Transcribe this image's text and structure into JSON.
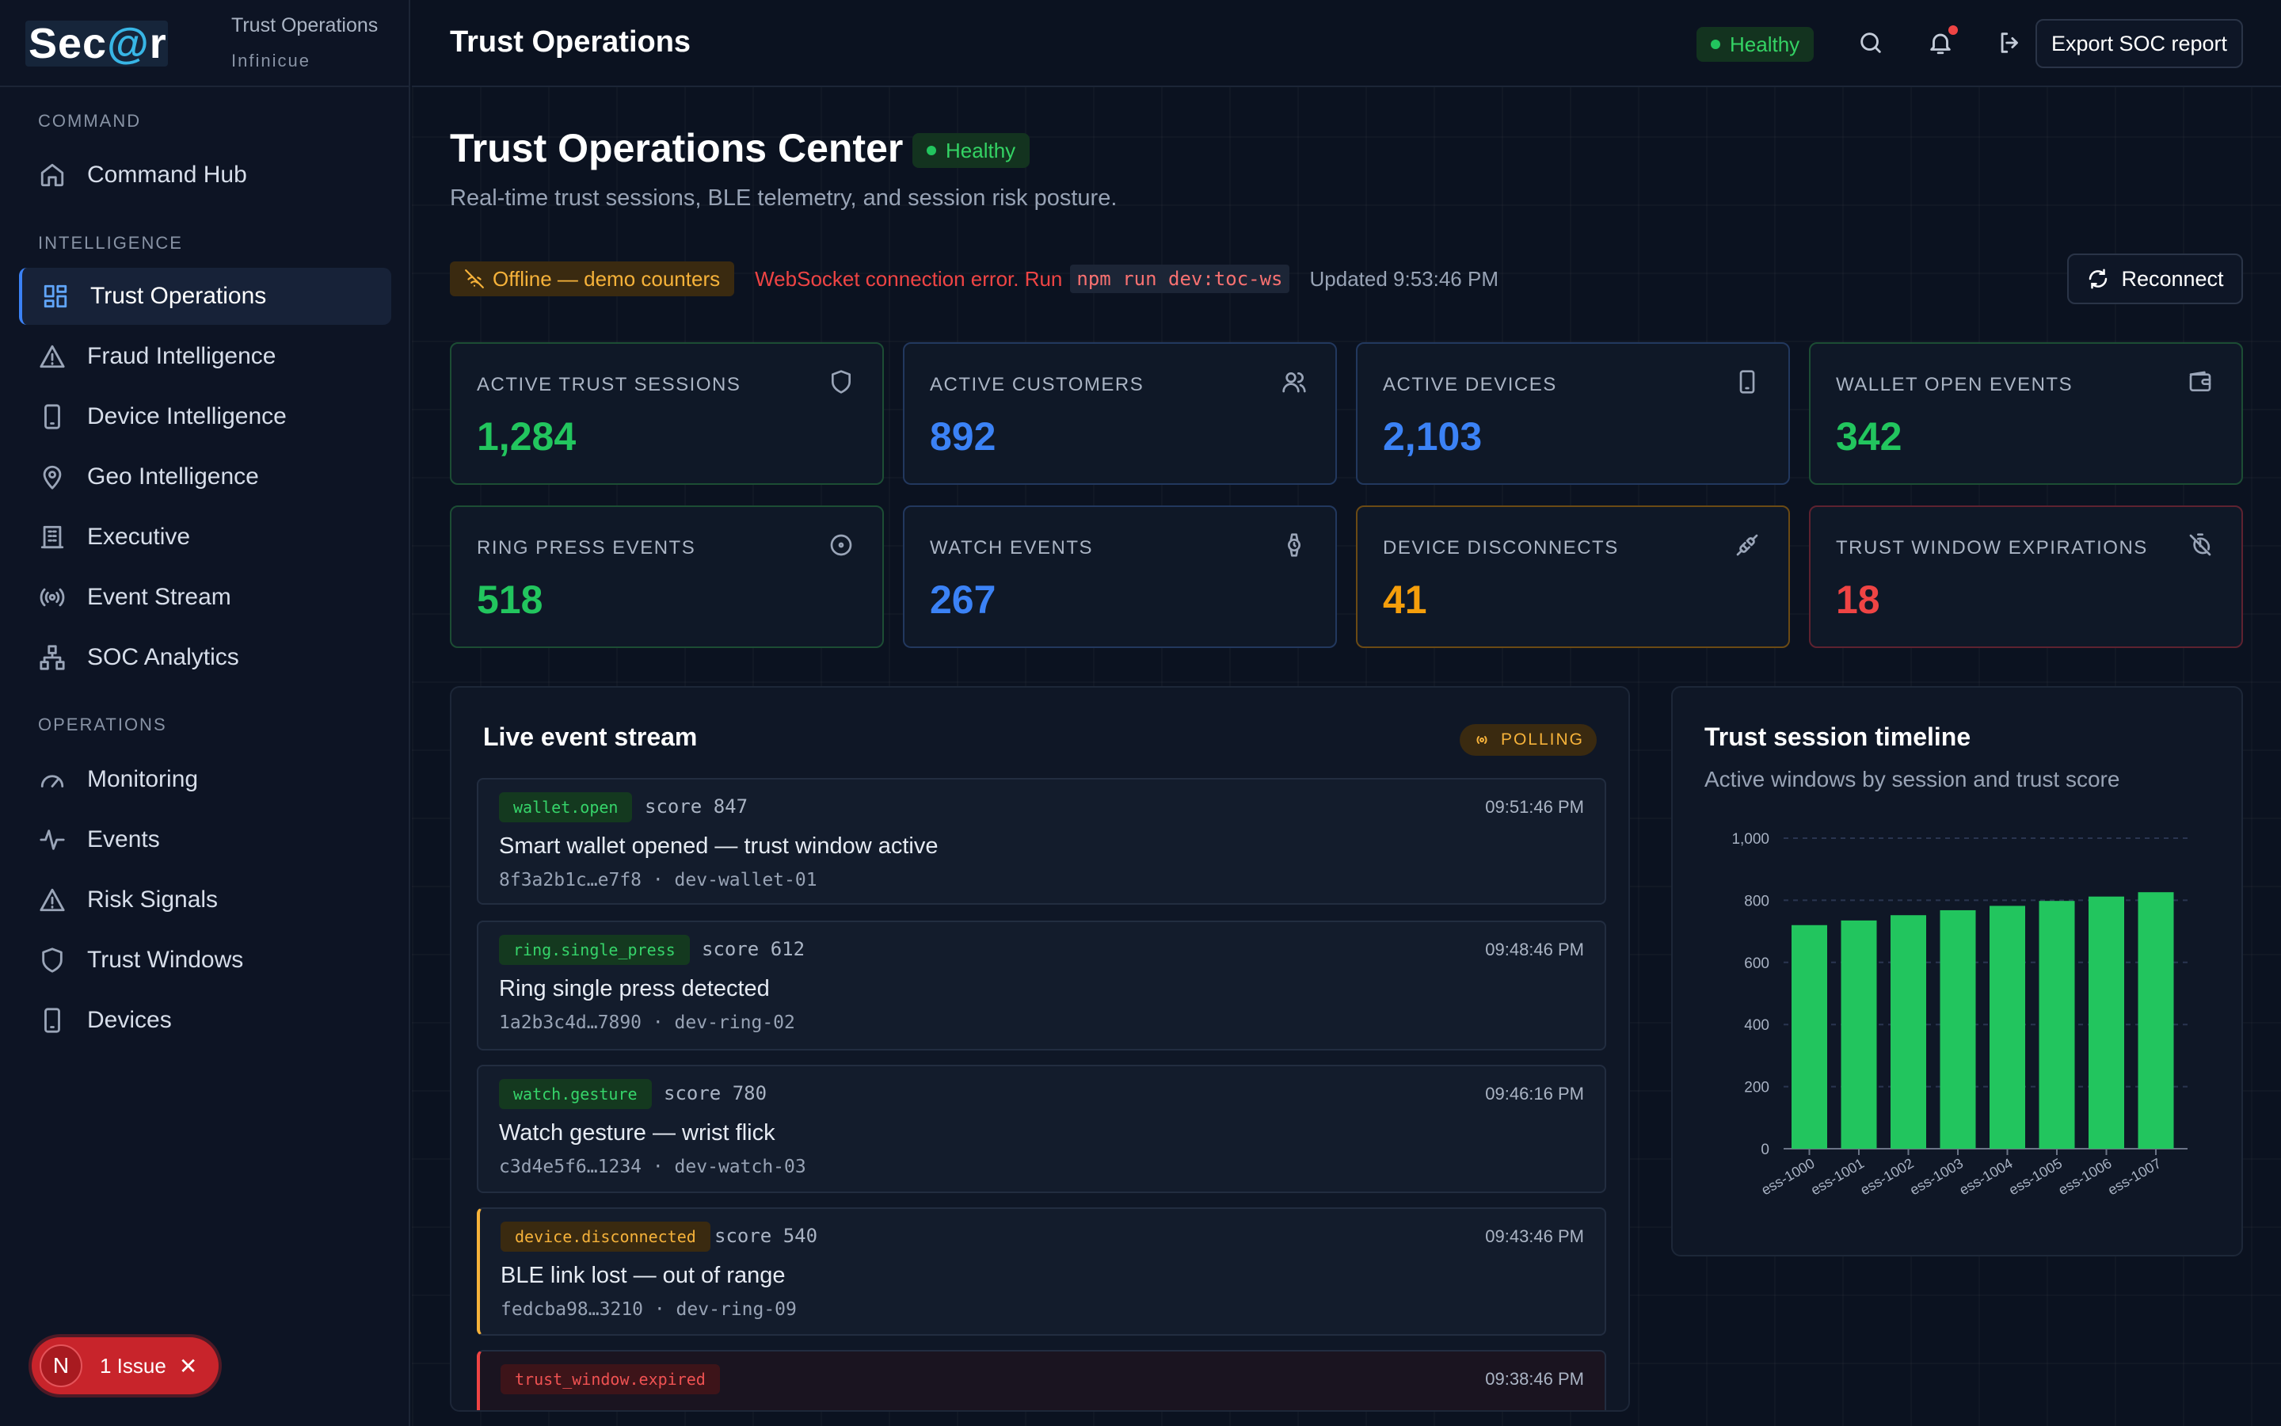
{
  "brand": {
    "logo_pre": "Sec",
    "logo_at": "@",
    "logo_post": "r",
    "title": "Trust Operations",
    "subtitle": "Infinicue"
  },
  "sidebar": {
    "sections": [
      {
        "label": "COMMAND",
        "items": [
          {
            "label": "Command Hub",
            "icon": "home-icon"
          }
        ]
      },
      {
        "label": "INTELLIGENCE",
        "items": [
          {
            "label": "Trust Operations",
            "icon": "grid-icon",
            "active": true
          },
          {
            "label": "Fraud Intelligence",
            "icon": "alert-triangle-icon"
          },
          {
            "label": "Device Intelligence",
            "icon": "phone-icon"
          },
          {
            "label": "Geo Intelligence",
            "icon": "map-pin-icon"
          },
          {
            "label": "Executive",
            "icon": "building-icon"
          },
          {
            "label": "Event Stream",
            "icon": "radio-icon"
          },
          {
            "label": "SOC Analytics",
            "icon": "network-icon"
          }
        ]
      },
      {
        "label": "OPERATIONS",
        "items": [
          {
            "label": "Monitoring",
            "icon": "gauge-icon"
          },
          {
            "label": "Events",
            "icon": "activity-icon"
          },
          {
            "label": "Risk Signals",
            "icon": "alert-triangle-icon"
          },
          {
            "label": "Trust Windows",
            "icon": "shield-icon"
          },
          {
            "label": "Devices",
            "icon": "phone-icon"
          }
        ]
      }
    ]
  },
  "issues": {
    "avatar": "N",
    "label": "1 Issue"
  },
  "topbar": {
    "title": "Trust Operations",
    "status": "Healthy",
    "export_label": "Export SOC report"
  },
  "page": {
    "title": "Trust Operations Center",
    "status": "Healthy",
    "subtitle": "Real-time trust sessions, BLE telemetry, and session risk posture.",
    "offline_label": "Offline — demo counters",
    "ws_error": "WebSocket connection error. Run",
    "ws_cmd": "npm run dev:toc-ws",
    "updated": "Updated 9:53:46 PM",
    "reconnect_label": "Reconnect"
  },
  "metrics": [
    {
      "label": "ACTIVE TRUST SESSIONS",
      "value": "1,284",
      "color": "#22c55e",
      "border": "green",
      "icon": "shield-icon"
    },
    {
      "label": "ACTIVE CUSTOMERS",
      "value": "892",
      "color": "#3b82f6",
      "border": "blue",
      "icon": "users-icon"
    },
    {
      "label": "ACTIVE DEVICES",
      "value": "2,103",
      "color": "#3b82f6",
      "border": "blue",
      "icon": "phone-icon"
    },
    {
      "label": "WALLET OPEN EVENTS",
      "value": "342",
      "color": "#22c55e",
      "border": "green",
      "icon": "wallet-icon"
    },
    {
      "label": "RING PRESS EVENTS",
      "value": "518",
      "color": "#22c55e",
      "border": "green",
      "icon": "circle-dot-icon"
    },
    {
      "label": "WATCH EVENTS",
      "value": "267",
      "color": "#3b82f6",
      "border": "blue",
      "icon": "watch-icon"
    },
    {
      "label": "DEVICE DISCONNECTS",
      "value": "41",
      "color": "#f59e0b",
      "border": "amber",
      "icon": "unplug-icon"
    },
    {
      "label": "TRUST WINDOW EXPIRATIONS",
      "value": "18",
      "color": "#ef4444",
      "border": "red",
      "icon": "timer-off-icon"
    }
  ],
  "stream": {
    "title": "Live event stream",
    "mode": "POLLING",
    "events": [
      {
        "tag": "wallet.open",
        "tone": "green",
        "score": "score 847",
        "time": "09:51:46 PM",
        "message": "Smart wallet opened — trust window active",
        "meta": "8f3a2b1c…e7f8 · dev-wallet-01"
      },
      {
        "tag": "ring.single_press",
        "tone": "green",
        "score": "score 612",
        "time": "09:48:46 PM",
        "message": "Ring single press detected",
        "meta": "1a2b3c4d…7890 · dev-ring-02"
      },
      {
        "tag": "watch.gesture",
        "tone": "green",
        "score": "score 780",
        "time": "09:46:16 PM",
        "message": "Watch gesture — wrist flick",
        "meta": "c3d4e5f6…1234 · dev-watch-03"
      },
      {
        "tag": "device.disconnected",
        "tone": "amber",
        "score": "score 540",
        "time": "09:43:46 PM",
        "message": "BLE link lost — out of range",
        "meta": "fedcba98…3210 · dev-ring-09"
      },
      {
        "tag": "trust_window.expired",
        "tone": "red",
        "score": "",
        "time": "09:38:46 PM",
        "message": "",
        "meta": ""
      }
    ]
  },
  "chart_data": {
    "type": "bar",
    "title": "Trust session timeline",
    "subtitle": "Active windows by session and trust score",
    "categories": [
      "ess-1000",
      "ess-1001",
      "ess-1002",
      "ess-1003",
      "ess-1004",
      "ess-1005",
      "ess-1006",
      "ess-1007"
    ],
    "values": [
      720,
      735,
      752,
      768,
      782,
      798,
      812,
      826
    ],
    "ylim": [
      0,
      1000
    ],
    "yticks": [
      "0",
      "200",
      "400",
      "600",
      "800",
      "1,000"
    ],
    "grid": true,
    "bar_color": "#22c55e"
  }
}
